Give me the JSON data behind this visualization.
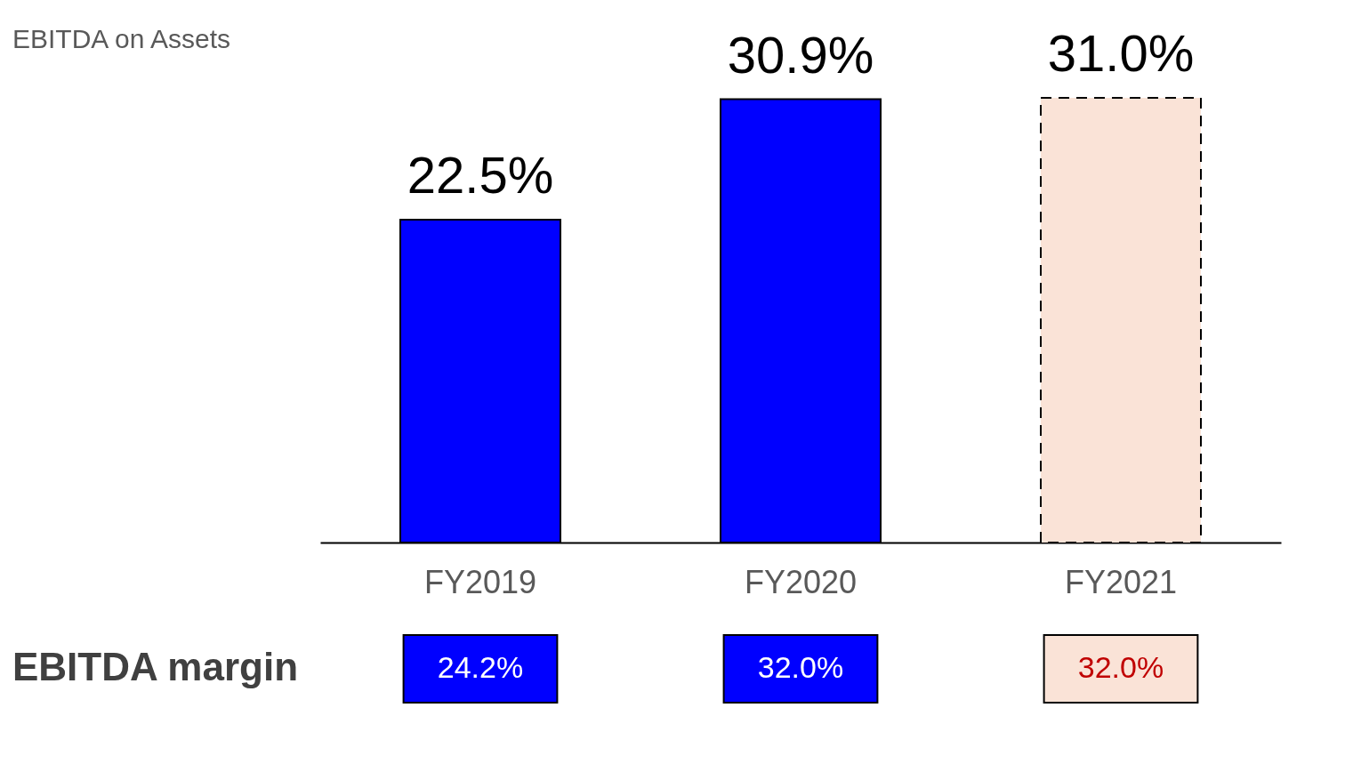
{
  "chart_data": [
    {
      "type": "bar",
      "title": "EBITDA on Assets",
      "categories": [
        "FY2019",
        "FY2020",
        "FY2021"
      ],
      "tick_labels": "x",
      "series": [
        {
          "color": "#0000ff",
          "values": [
            22.5,
            30.9,
            null
          ],
          "value_labels": [
            "22.5%",
            "30.9%",
            null
          ],
          "line_style": "solid"
        },
        {
          "color": "#fae3d7",
          "values": [
            null,
            null,
            31.0
          ],
          "value_labels": [
            null,
            null,
            "31.0%"
          ],
          "line_style": "dashed"
        }
      ]
    },
    {
      "type": "other",
      "ylabel": "EBITDA margin",
      "categories": [
        null,
        null,
        null
      ],
      "values": [
        24.2,
        32.0,
        32.0
      ],
      "value_labels": [
        "24.2%",
        "32.0%",
        "32.0%"
      ],
      "colors": [
        "#0000ff",
        "#0000ff",
        "#fae3d7"
      ]
    }
  ]
}
